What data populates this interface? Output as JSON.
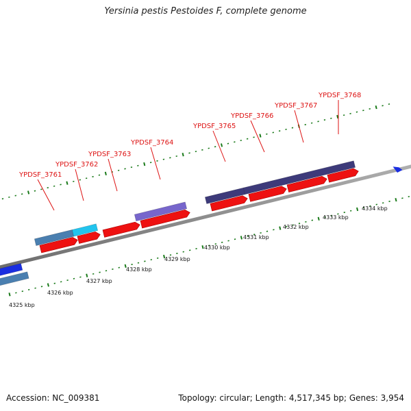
{
  "title": "Yersinia pestis Pestoides F, complete genome",
  "footer": {
    "accession": "Accession: NC_009381",
    "topology": "Topology: circular; Length: 4,517,345 bp; Genes: 3,954"
  },
  "colors": {
    "backbone": "#8a8a8a",
    "cds": "#ee1111",
    "gene_dark": "#3d3a7a",
    "gene_steel": "#4a7fb0",
    "gene_cyan": "#22c4ee",
    "gene_lavender": "#7766cc",
    "gene_blue": "#1a2ee0",
    "tick": "#1a7a1a",
    "label": "#dd1111"
  },
  "scale_labels": [
    "4325 kbp",
    "4326 kbp",
    "4327 kbp",
    "4328 kbp",
    "4329 kbp",
    "4330 kbp",
    "4331 kbp",
    "4332 kbp",
    "4333 kbp",
    "4334 kbp"
  ],
  "gene_labels": [
    "YPDSF_3761",
    "YPDSF_3762",
    "YPDSF_3763",
    "YPDSF_3764",
    "YPDSF_3765",
    "YPDSF_3766",
    "YPDSF_3767",
    "YPDSF_3768"
  ]
}
